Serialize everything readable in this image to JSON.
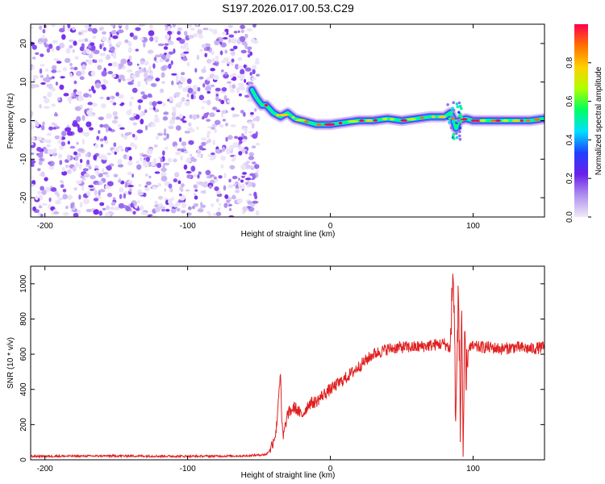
{
  "title": "S197.2026.017.00.53.C29",
  "chart_data": [
    {
      "type": "heatmap",
      "name": "spectrogram",
      "xlabel": "Height of straight line (km)",
      "ylabel": "Frequency (Hz)",
      "xlim": [
        -210,
        150
      ],
      "ylim": [
        -25,
        25
      ],
      "xticks": [
        -200,
        -100,
        0,
        100
      ],
      "yticks": [
        -20,
        -10,
        0,
        10,
        20
      ],
      "noise_region_x": [
        -210,
        -53
      ],
      "signal_ridge": {
        "x": [
          -55,
          -52,
          -48,
          -45,
          -40,
          -35,
          -30,
          -25,
          -20,
          -15,
          -10,
          -5,
          0,
          10,
          20,
          30,
          40,
          50,
          60,
          70,
          80,
          84,
          86,
          88,
          90,
          95,
          100,
          110,
          120,
          130,
          140,
          150
        ],
        "freq": [
          8,
          6,
          4,
          4,
          2,
          1,
          2,
          0.5,
          0,
          -0.5,
          -1,
          -1,
          -1,
          -0.5,
          0,
          0,
          0.5,
          0,
          0.5,
          1,
          1,
          2,
          0.5,
          -2,
          0,
          0.5,
          0,
          0,
          0,
          0,
          0,
          0.5
        ]
      }
    },
    {
      "type": "line",
      "name": "snr",
      "xlabel": "Height of straight line (km)",
      "ylabel": "SNR (10 * v/v)",
      "xlim": [
        -210,
        150
      ],
      "ylim": [
        0,
        1100
      ],
      "xticks": [
        -200,
        -100,
        0,
        100
      ],
      "yticks": [
        0,
        200,
        400,
        600,
        800,
        1000
      ],
      "series": [
        {
          "name": "SNR",
          "color": "#e02020",
          "x": [
            -210,
            -150,
            -100,
            -60,
            -45,
            -42,
            -38,
            -36,
            -35,
            -34,
            -33,
            -30,
            -25,
            -20,
            -15,
            -10,
            -5,
            0,
            10,
            20,
            30,
            40,
            50,
            60,
            70,
            80,
            84,
            86,
            88,
            89,
            90,
            91,
            92,
            93,
            94,
            95,
            97,
            100,
            110,
            120,
            130,
            140,
            150
          ],
          "y": [
            20,
            22,
            20,
            22,
            30,
            60,
            160,
            400,
            500,
            200,
            130,
            260,
            300,
            250,
            320,
            330,
            370,
            400,
            460,
            530,
            600,
            630,
            640,
            640,
            650,
            660,
            630,
            1100,
            200,
            700,
            950,
            100,
            900,
            50,
            600,
            400,
            650,
            640,
            640,
            630,
            640,
            630,
            640
          ]
        }
      ]
    },
    {
      "type": "colorbar",
      "name": "colorbar",
      "label": "Normalized spectral amplitude",
      "range": [
        0,
        1
      ],
      "ticks": [
        0,
        0.2,
        0.4,
        0.6,
        0.8
      ],
      "tick_labels": [
        "0.0",
        "0.2",
        "0.4",
        "0.6",
        "0.8"
      ],
      "stops": [
        "#f0eaf8",
        "#b090f0",
        "#6a20e8",
        "#2040ff",
        "#00e0ff",
        "#00ff60",
        "#b0ff00",
        "#ffd000",
        "#ff7000",
        "#ff0050"
      ]
    }
  ]
}
